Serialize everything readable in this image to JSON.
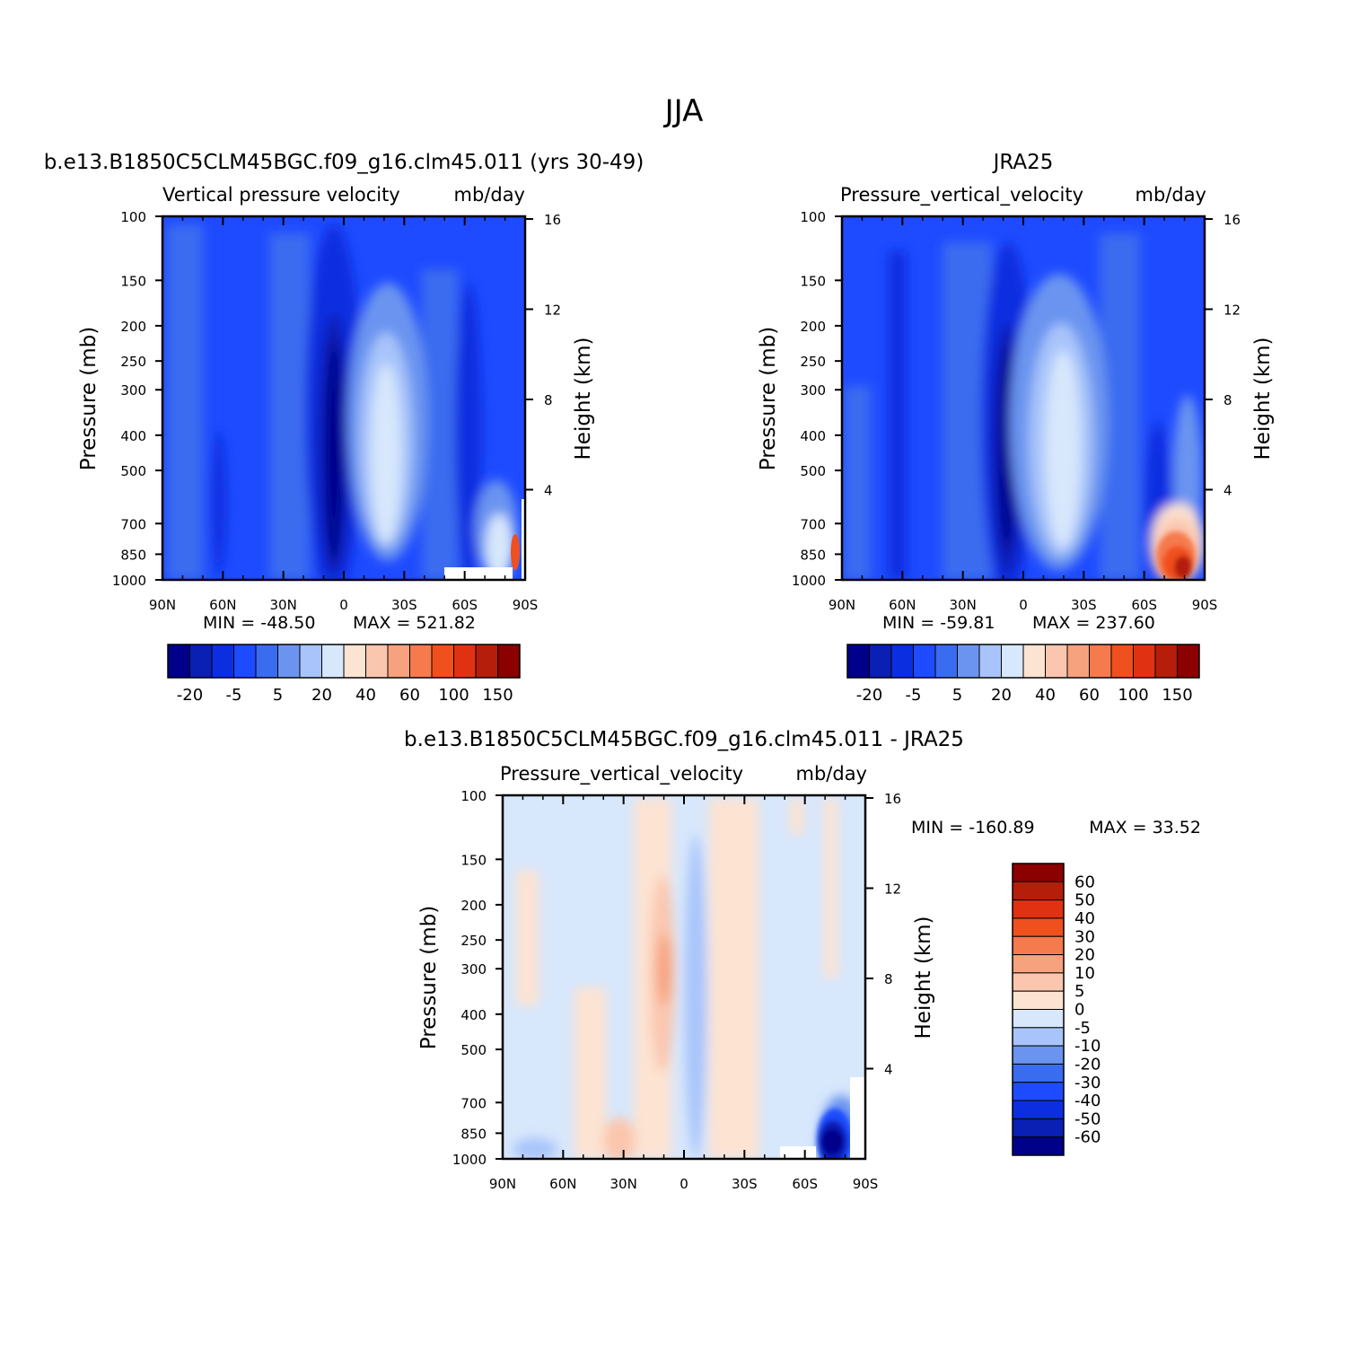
{
  "page_title": "JJA",
  "colors": {
    "blue_scale": [
      "#00008b",
      "#0a1fb4",
      "#0b2fe0",
      "#1e4bff",
      "#3a6cf0",
      "#6b94f0",
      "#a8c4fa",
      "#d7e7fc"
    ],
    "red_scale": [
      "#fde3d2",
      "#fbc6ae",
      "#f7a27e",
      "#f57a4e",
      "#f0501e",
      "#e03212",
      "#b41e0a",
      "#8b0000"
    ]
  },
  "chart_data": [
    {
      "type": "heatmap",
      "case_title": "b.e13.B1850C5CLM45BGC.f09_g16.clm45.011 (yrs 30-49)",
      "variable": "Vertical pressure velocity",
      "units": "mb/day",
      "ylabel": "Pressure (mb)",
      "ylabel_right": "Height (km)",
      "x_ticks": [
        "90N",
        "60N",
        "30N",
        "0",
        "30S",
        "60S",
        "90S"
      ],
      "y_ticks": [
        "100",
        "150",
        "200",
        "250",
        "300",
        "400",
        "500",
        "700",
        "850",
        "1000"
      ],
      "y_ticks_right": [
        "16",
        "12",
        "8",
        "4"
      ],
      "min_label": "MIN = -48.50",
      "max_label": "MAX = 521.82",
      "min": -48.5,
      "max": 521.82,
      "colorbar_labels": [
        "-20",
        "-5",
        "5",
        "20",
        "40",
        "60",
        "100",
        "150"
      ],
      "colorbar_orientation": "horizontal"
    },
    {
      "type": "heatmap",
      "case_title": "JRA25",
      "variable": "Pressure_vertical_velocity",
      "units": "mb/day",
      "ylabel": "Pressure (mb)",
      "ylabel_right": "Height (km)",
      "x_ticks": [
        "90N",
        "60N",
        "30N",
        "0",
        "30S",
        "60S",
        "90S"
      ],
      "y_ticks": [
        "100",
        "150",
        "200",
        "250",
        "300",
        "400",
        "500",
        "700",
        "850",
        "1000"
      ],
      "y_ticks_right": [
        "16",
        "12",
        "8",
        "4"
      ],
      "min_label": "MIN = -59.81",
      "max_label": "MAX = 237.60",
      "min": -59.81,
      "max": 237.6,
      "colorbar_labels": [
        "-20",
        "-5",
        "5",
        "20",
        "40",
        "60",
        "100",
        "150"
      ],
      "colorbar_orientation": "horizontal"
    },
    {
      "type": "heatmap",
      "case_title": "b.e13.B1850C5CLM45BGC.f09_g16.clm45.011 - JRA25",
      "variable": "Pressure_vertical_velocity",
      "units": "mb/day",
      "ylabel": "Pressure (mb)",
      "ylabel_right": "Height (km)",
      "x_ticks": [
        "90N",
        "60N",
        "30N",
        "0",
        "30S",
        "60S",
        "90S"
      ],
      "y_ticks": [
        "100",
        "150",
        "200",
        "250",
        "300",
        "400",
        "500",
        "700",
        "850",
        "1000"
      ],
      "y_ticks_right": [
        "16",
        "12",
        "8",
        "4"
      ],
      "min_label": "MIN = -160.89",
      "max_label": "MAX = 33.52",
      "min": -160.89,
      "max": 33.52,
      "colorbar_labels": [
        "60",
        "50",
        "40",
        "30",
        "20",
        "10",
        "5",
        "0",
        "-5",
        "-10",
        "-20",
        "-30",
        "-40",
        "-50",
        "-60"
      ],
      "colorbar_orientation": "vertical"
    }
  ]
}
